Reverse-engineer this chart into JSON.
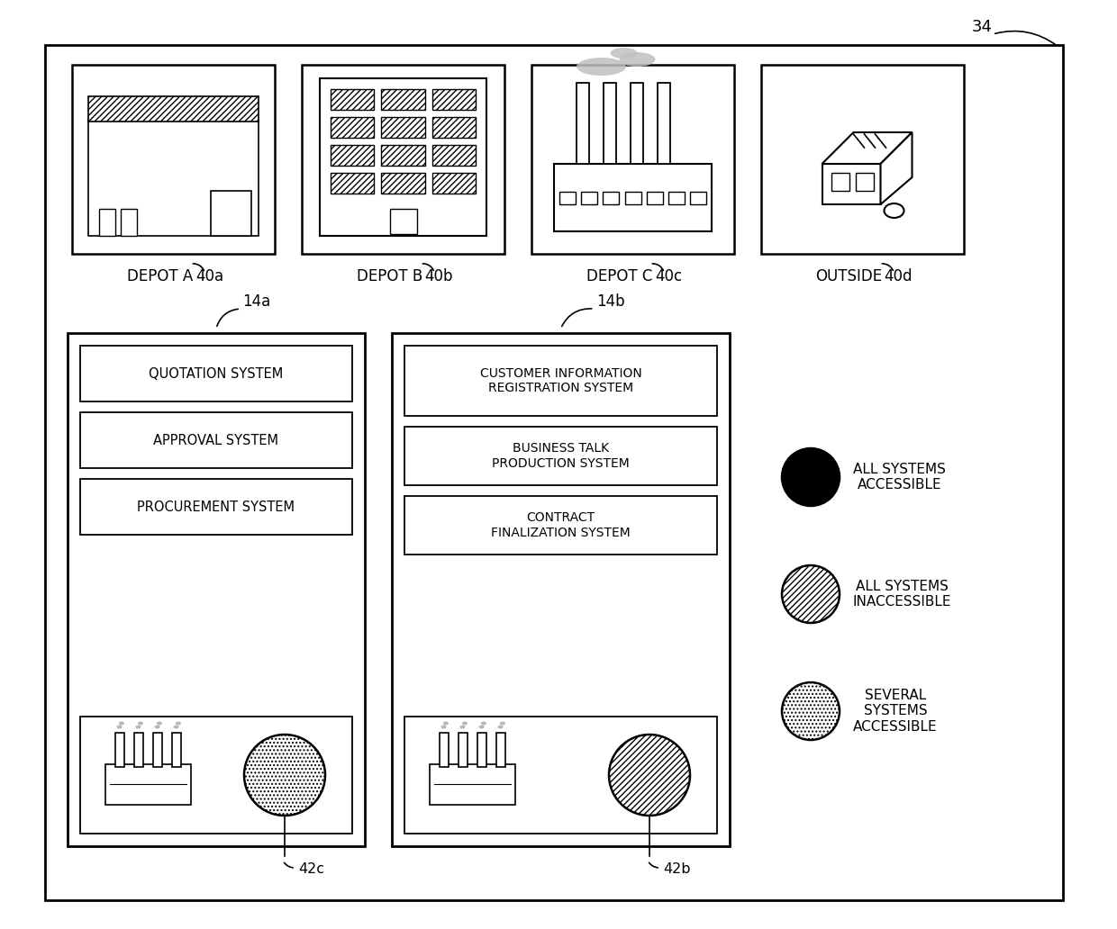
{
  "title": "34",
  "bg_color": "#ffffff",
  "depot_labels": [
    "DEPOT A",
    "DEPOT B",
    "DEPOT C",
    "OUTSIDE"
  ],
  "depot_refs": [
    "40a",
    "40b",
    "40c",
    "40d"
  ],
  "system_box_14a": "14a",
  "system_box_14b": "14b",
  "systems_14a": [
    "QUOTATION SYSTEM",
    "APPROVAL SYSTEM",
    "PROCUREMENT SYSTEM"
  ],
  "systems_14b": [
    "CUSTOMER INFORMATION\nREGISTRATION SYSTEM",
    "BUSINESS TALK\nPRODUCTION SYSTEM",
    "CONTRACT\nFINALIZATION SYSTEM"
  ],
  "legend_items": [
    {
      "label": "ALL SYSTEMS\nACCESSIBLE",
      "style": "solid_black"
    },
    {
      "label": "ALL SYSTEMS\nINACCESSIBLE",
      "style": "diagonal_hatch"
    },
    {
      "label": "SEVERAL\nSYSTEMS\nACCESSIBLE",
      "style": "dot_hatch"
    }
  ],
  "ref_42c": "42c",
  "ref_42b": "42b"
}
